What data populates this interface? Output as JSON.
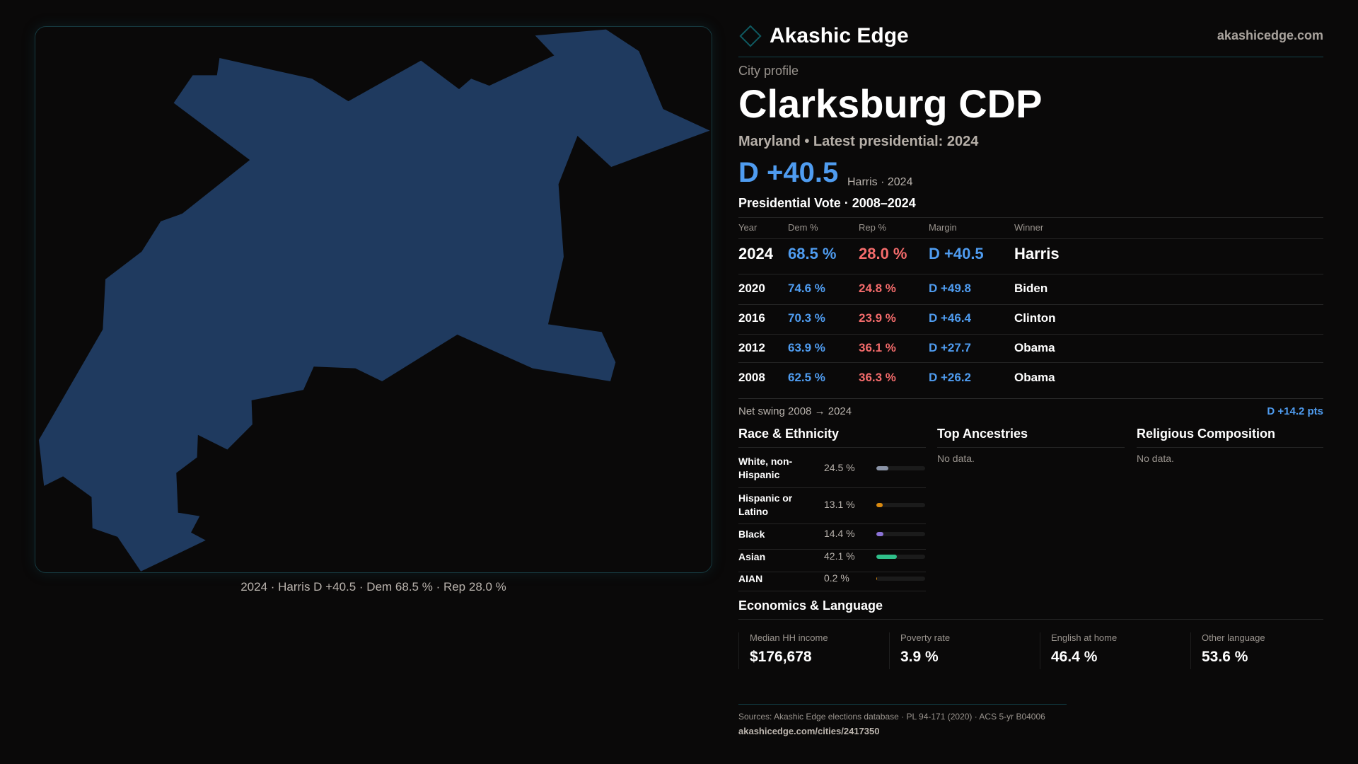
{
  "header": {
    "brand": "Akashic Edge",
    "site": "akashicedge.com"
  },
  "profile": {
    "kicker": "City profile",
    "title": "Clarksburg CDP",
    "subtitle": "Maryland • Latest presidential: 2024",
    "margin": "D +40.5",
    "margin_note": "Harris · 2024"
  },
  "map": {
    "caption": "2024 · Harris D +40.5 · Dem 68.5 % · Rep 28.0 %",
    "fill": "#1f3a5f"
  },
  "votes": {
    "title": "Presidential Vote · 2008–2024",
    "headers": [
      "Year",
      "Dem %",
      "Rep %",
      "Margin",
      "Winner"
    ],
    "rows": [
      {
        "year": "2024",
        "dem": "68.5 %",
        "rep": "28.0 %",
        "margin": "D +40.5",
        "winner": "Harris"
      },
      {
        "year": "2020",
        "dem": "74.6 %",
        "rep": "24.8 %",
        "margin": "D +49.8",
        "winner": "Biden"
      },
      {
        "year": "2016",
        "dem": "70.3 %",
        "rep": "23.9 %",
        "margin": "D +46.4",
        "winner": "Clinton"
      },
      {
        "year": "2012",
        "dem": "63.9 %",
        "rep": "36.1 %",
        "margin": "D +27.7",
        "winner": "Obama"
      },
      {
        "year": "2008",
        "dem": "62.5 %",
        "rep": "36.3 %",
        "margin": "D +26.2",
        "winner": "Obama"
      }
    ],
    "swing_label": "Net swing 2008 → 2024",
    "swing_value": "D +14.2 pts"
  },
  "race": {
    "title": "Race & Ethnicity",
    "rows": [
      {
        "label": "White, non-Hispanic",
        "value": "24.5 %",
        "pct": 24.5,
        "color": "#8a93a6"
      },
      {
        "label": "Hispanic or Latino",
        "value": "13.1 %",
        "pct": 13.1,
        "color": "#d9890f"
      },
      {
        "label": "Black",
        "value": "14.4 %",
        "pct": 14.4,
        "color": "#8b72d6"
      },
      {
        "label": "Asian",
        "value": "42.1 %",
        "pct": 42.1,
        "color": "#2fbf8a"
      },
      {
        "label": "AIAN",
        "value": "0.2 %",
        "pct": 0.2,
        "color": "#d9890f"
      }
    ]
  },
  "ancestries": {
    "title": "Top Ancestries",
    "empty": "No data."
  },
  "religion": {
    "title": "Religious Composition",
    "empty": "No data."
  },
  "economics": {
    "title": "Economics & Language",
    "items": [
      {
        "label": "Median HH income",
        "value": "$176,678"
      },
      {
        "label": "Poverty rate",
        "value": "3.9 %"
      },
      {
        "label": "English at home",
        "value": "46.4 %"
      },
      {
        "label": "Other language",
        "value": "53.6 %"
      }
    ]
  },
  "footer": {
    "sources": "Sources: Akashic Edge elections database · PL 94-171 (2020) · ACS 5-yr B04006",
    "url": "akashicedge.com/cities/2417350"
  }
}
